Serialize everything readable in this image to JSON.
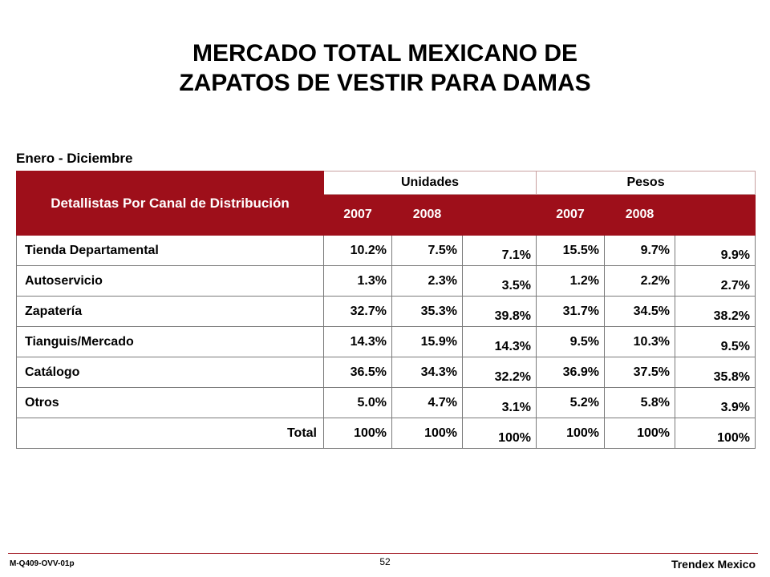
{
  "title_line1": "MERCADO TOTAL MEXICANO DE",
  "title_line2": "ZAPATOS DE VESTIR PARA DAMAS",
  "period": "Enero - Diciembre",
  "table": {
    "header_main": "Detallistas Por Canal de Distribución",
    "group_units": "Unidades",
    "group_pesos": "Pesos",
    "years": [
      "2007",
      "2008",
      "",
      "2007",
      "2008",
      ""
    ],
    "rows": [
      {
        "label": "Tienda Departamental",
        "values": [
          "10.2%",
          "7.5%",
          "7.1%",
          "15.5%",
          "9.7%",
          "9.9%"
        ]
      },
      {
        "label": "Autoservicio",
        "values": [
          "1.3%",
          "2.3%",
          "3.5%",
          "1.2%",
          "2.2%",
          "2.7%"
        ]
      },
      {
        "label": "Zapatería",
        "values": [
          "32.7%",
          "35.3%",
          "39.8%",
          "31.7%",
          "34.5%",
          "38.2%"
        ]
      },
      {
        "label": "Tianguis/Mercado",
        "values": [
          "14.3%",
          "15.9%",
          "14.3%",
          "9.5%",
          "10.3%",
          "9.5%"
        ]
      },
      {
        "label": "Catálogo",
        "values": [
          "36.5%",
          "34.3%",
          "32.2%",
          "36.9%",
          "37.5%",
          "35.8%"
        ]
      },
      {
        "label": "Otros",
        "values": [
          "5.0%",
          "4.7%",
          "3.1%",
          "5.2%",
          "5.8%",
          "3.9%"
        ]
      },
      {
        "label": "Total",
        "values": [
          "100%",
          "100%",
          "100%",
          "100%",
          "100%",
          "100%"
        ]
      }
    ]
  },
  "footer": {
    "code": "M-Q409-OVV-01p",
    "page": "52",
    "brand": "Trendex Mexico"
  },
  "colors": {
    "header_bg": "#9e0f1a",
    "header_text": "#ffffff"
  }
}
